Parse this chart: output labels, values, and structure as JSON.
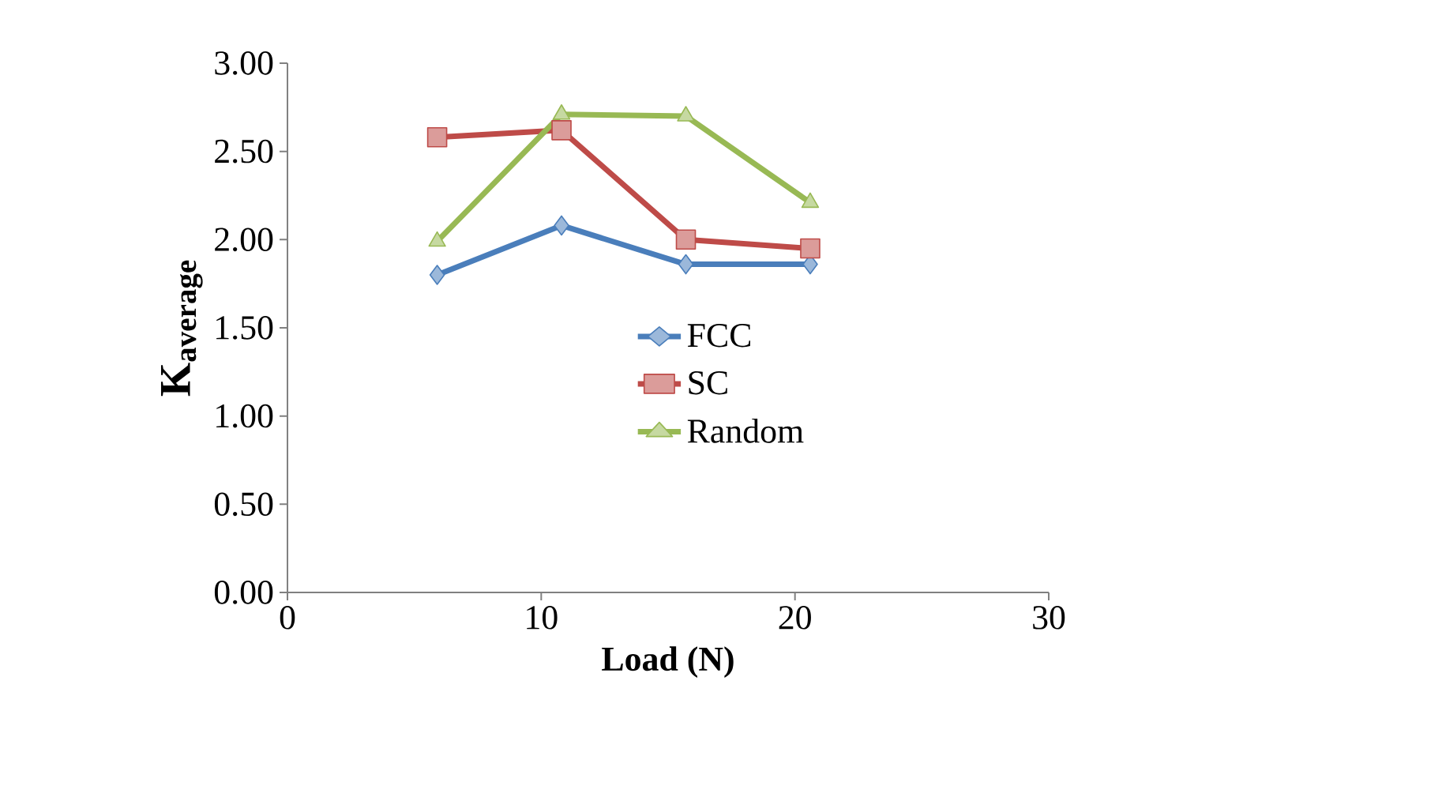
{
  "chart_data": {
    "type": "line",
    "xlabel": "Load (N)",
    "ylabel": "K$_{average}$",
    "xlim": [
      0,
      30
    ],
    "xticks": [
      0,
      10,
      20,
      30
    ],
    "ylim": [
      0,
      3
    ],
    "yticks": [
      {
        "value": 0,
        "label": "0.00"
      },
      {
        "value": 0.5,
        "label": "0.50"
      },
      {
        "value": 1,
        "label": "1.00"
      },
      {
        "value": 1.5,
        "label": "1.50"
      },
      {
        "value": 2,
        "label": "2.00"
      },
      {
        "value": 2.5,
        "label": "2.50"
      },
      {
        "value": 3,
        "label": "3.00"
      }
    ],
    "x": [
      5.9,
      10.8,
      15.7,
      20.6
    ],
    "series": [
      {
        "name": "FCC",
        "color": "#4a7ebb",
        "marker": "diamond",
        "values": [
          1.8,
          2.08,
          1.86,
          1.86
        ]
      },
      {
        "name": "SC",
        "color": "#be4b48",
        "marker": "square",
        "values": [
          2.58,
          2.62,
          2.0,
          1.95
        ]
      },
      {
        "name": "Random",
        "color": "#98b954",
        "marker": "triangle",
        "values": [
          1.99,
          2.71,
          2.7,
          2.21
        ]
      }
    ],
    "grid": false,
    "legend": "center"
  }
}
